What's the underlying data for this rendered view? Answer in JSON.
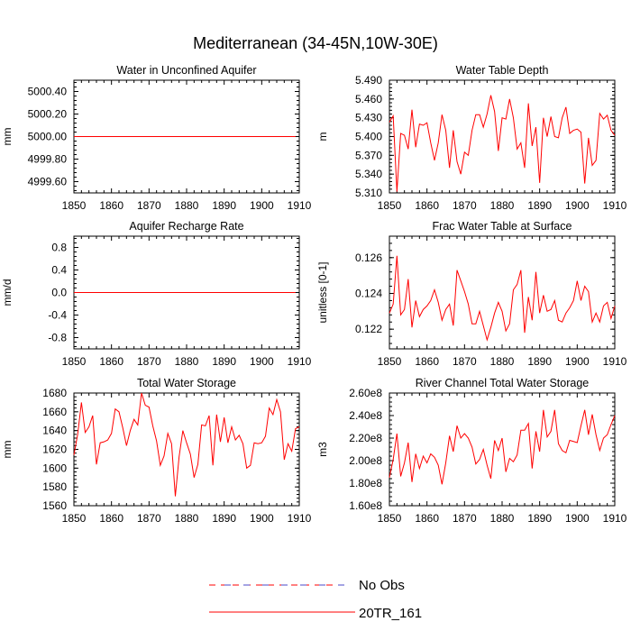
{
  "title": "Mediterranean (34-45N,10W-30E)",
  "colors": {
    "model": "#ff0000",
    "obs_dash_1": "#ff0000",
    "obs_dash_2": "#4a4ac8",
    "axis": "#000000"
  },
  "legend": {
    "entries": [
      {
        "label": "No Obs",
        "style": "dashed"
      },
      {
        "label": "20TR_161",
        "style": "solid"
      }
    ]
  },
  "chart_data": [
    {
      "type": "line",
      "title": "Water in Unconfined Aquifer",
      "ylabel": "mm",
      "xlim": [
        1850,
        1910
      ],
      "ylim": [
        4999.5,
        5000.5
      ],
      "xticks": [
        1850,
        1860,
        1870,
        1880,
        1890,
        1900,
        1910
      ],
      "yticks": [
        4999.6,
        4999.8,
        5000.0,
        5000.2,
        5000.4
      ],
      "ytick_labels": [
        "4999.60",
        "4999.80",
        "5000.00",
        "5000.20",
        "5000.40"
      ],
      "grid": false,
      "series": [
        {
          "name": "20TR_161",
          "x_start": 1850,
          "x_step": 1,
          "values": [
            5000,
            5000,
            5000,
            5000,
            5000,
            5000,
            5000,
            5000,
            5000,
            5000,
            5000,
            5000,
            5000,
            5000,
            5000,
            5000,
            5000,
            5000,
            5000,
            5000,
            5000,
            5000,
            5000,
            5000,
            5000,
            5000,
            5000,
            5000,
            5000,
            5000,
            5000,
            5000,
            5000,
            5000,
            5000,
            5000,
            5000,
            5000,
            5000,
            5000,
            5000,
            5000,
            5000,
            5000,
            5000,
            5000,
            5000,
            5000,
            5000,
            5000,
            5000,
            5000,
            5000,
            5000,
            5000,
            5000,
            5000,
            5000,
            5000,
            5000
          ]
        }
      ]
    },
    {
      "type": "line",
      "title": "Water Table Depth",
      "ylabel": "m",
      "xlim": [
        1850,
        1910
      ],
      "ylim": [
        5.31,
        5.49
      ],
      "xticks": [
        1850,
        1860,
        1870,
        1880,
        1890,
        1900,
        1910
      ],
      "yticks": [
        5.31,
        5.34,
        5.37,
        5.4,
        5.43,
        5.46,
        5.49
      ],
      "ytick_labels": [
        "5.310",
        "5.340",
        "5.370",
        "5.400",
        "5.430",
        "5.460",
        "5.490"
      ],
      "grid": false,
      "series": [
        {
          "name": "20TR_161",
          "x_start": 1850,
          "x_step": 1,
          "values": [
            5.423,
            5.433,
            5.312,
            5.405,
            5.402,
            5.38,
            5.443,
            5.383,
            5.42,
            5.418,
            5.422,
            5.39,
            5.362,
            5.39,
            5.435,
            5.41,
            5.35,
            5.41,
            5.36,
            5.34,
            5.375,
            5.37,
            5.41,
            5.435,
            5.435,
            5.415,
            5.436,
            5.466,
            5.44,
            5.377,
            5.43,
            5.428,
            5.46,
            5.43,
            5.38,
            5.39,
            5.35,
            5.453,
            5.385,
            5.415,
            5.326,
            5.43,
            5.4,
            5.432,
            5.4,
            5.398,
            5.43,
            5.447,
            5.405,
            5.41,
            5.412,
            5.407,
            5.325,
            5.398,
            5.354,
            5.362,
            5.437,
            5.428,
            5.434,
            5.41,
            5.402
          ]
        }
      ]
    },
    {
      "type": "line",
      "title": "Aquifer Recharge Rate",
      "ylabel": "mm/d",
      "xlim": [
        1850,
        1910
      ],
      "ylim": [
        -1.0,
        1.0
      ],
      "xticks": [
        1850,
        1860,
        1870,
        1880,
        1890,
        1900,
        1910
      ],
      "yticks": [
        -0.8,
        -0.4,
        0.0,
        0.4,
        0.8
      ],
      "ytick_labels": [
        "-0.8",
        "-0.4",
        "0.0",
        "0.4",
        "0.8"
      ],
      "grid": false,
      "series": [
        {
          "name": "20TR_161",
          "x_start": 1850,
          "x_step": 1,
          "values": [
            0,
            0,
            0,
            0,
            0,
            0,
            0,
            0,
            0,
            0,
            0,
            0,
            0,
            0,
            0,
            0,
            0,
            0,
            0,
            0,
            0,
            0,
            0,
            0,
            0,
            0,
            0,
            0,
            0,
            0,
            0,
            0,
            0,
            0,
            0,
            0,
            0,
            0,
            0,
            0,
            0,
            0,
            0,
            0,
            0,
            0,
            0,
            0,
            0,
            0,
            0,
            0,
            0,
            0,
            0,
            0,
            0,
            0,
            0,
            0
          ]
        }
      ]
    },
    {
      "type": "line",
      "title": "Frac Water Table at Surface",
      "ylabel": "unitless [0-1]",
      "xlim": [
        1850,
        1910
      ],
      "ylim": [
        0.1209,
        0.1272
      ],
      "xticks": [
        1850,
        1860,
        1870,
        1880,
        1890,
        1900,
        1910
      ],
      "yticks": [
        0.122,
        0.124,
        0.126
      ],
      "ytick_labels": [
        "0.122",
        "0.124",
        "0.126"
      ],
      "grid": false,
      "series": [
        {
          "name": "20TR_161",
          "x_start": 1850,
          "x_step": 1,
          "values": [
            0.1229,
            0.1234,
            0.1261,
            0.1228,
            0.1231,
            0.1248,
            0.1221,
            0.1236,
            0.1227,
            0.1231,
            0.1233,
            0.1236,
            0.1242,
            0.1235,
            0.1225,
            0.1231,
            0.1234,
            0.1222,
            0.1253,
            0.1247,
            0.1241,
            0.1234,
            0.1223,
            0.1223,
            0.123,
            0.1222,
            0.1214,
            0.1221,
            0.1229,
            0.1235,
            0.123,
            0.1219,
            0.1223,
            0.1242,
            0.1245,
            0.1253,
            0.1218,
            0.1238,
            0.1225,
            0.1252,
            0.1229,
            0.1239,
            0.123,
            0.1231,
            0.1236,
            0.1225,
            0.1224,
            0.1229,
            0.1232,
            0.1236,
            0.1247,
            0.1236,
            0.1244,
            0.1241,
            0.1224,
            0.1229,
            0.1224,
            0.1233,
            0.1235,
            0.1226,
            0.1233
          ]
        }
      ]
    },
    {
      "type": "line",
      "title": "Total Water Storage",
      "ylabel": "mm",
      "xlim": [
        1850,
        1910
      ],
      "ylim": [
        1560,
        1680
      ],
      "xticks": [
        1850,
        1860,
        1870,
        1880,
        1890,
        1900,
        1910
      ],
      "yticks": [
        1560,
        1580,
        1600,
        1620,
        1640,
        1660,
        1680
      ],
      "ytick_labels": [
        "1560",
        "1580",
        "1600",
        "1620",
        "1640",
        "1660",
        "1680"
      ],
      "grid": false,
      "series": [
        {
          "name": "20TR_161",
          "x_start": 1850,
          "x_step": 1,
          "values": [
            1614,
            1636,
            1670,
            1638,
            1644,
            1656,
            1604,
            1627,
            1628,
            1630,
            1637,
            1663,
            1660,
            1643,
            1624,
            1640,
            1652,
            1646,
            1680,
            1667,
            1665,
            1645,
            1629,
            1603,
            1613,
            1637,
            1626,
            1570,
            1612,
            1640,
            1627,
            1615,
            1590,
            1604,
            1646,
            1645,
            1656,
            1603,
            1657,
            1628,
            1654,
            1627,
            1644,
            1630,
            1635,
            1626,
            1600,
            1603,
            1627,
            1626,
            1627,
            1634,
            1664,
            1657,
            1673,
            1660,
            1609,
            1626,
            1618,
            1642,
            1644
          ]
        }
      ]
    },
    {
      "type": "line",
      "title": "River Channel Total Water Storage",
      "ylabel": "m3",
      "xlim": [
        1850,
        1910
      ],
      "ylim": [
        160000000,
        260000000
      ],
      "xticks": [
        1850,
        1860,
        1870,
        1880,
        1890,
        1900,
        1910
      ],
      "yticks": [
        160000000,
        180000000,
        200000000,
        220000000,
        240000000,
        260000000
      ],
      "ytick_labels": [
        "1.60e8",
        "1.80e8",
        "2.00e8",
        "2.20e8",
        "2.40e8",
        "2.60e8"
      ],
      "grid": false,
      "series": [
        {
          "name": "20TR_161",
          "x_start": 1850,
          "x_step": 1,
          "values": [
            185000000,
            201000000,
            224000000,
            186000000,
            198000000,
            216000000,
            181000000,
            206000000,
            193000000,
            204000000,
            198000000,
            206000000,
            203000000,
            196000000,
            179000000,
            198000000,
            222000000,
            208000000,
            231000000,
            220000000,
            224000000,
            220000000,
            212000000,
            197000000,
            201000000,
            210000000,
            196000000,
            184000000,
            218000000,
            209000000,
            220000000,
            190000000,
            202000000,
            199000000,
            205000000,
            227000000,
            227000000,
            233000000,
            193000000,
            226000000,
            208000000,
            245000000,
            221000000,
            226000000,
            245000000,
            215000000,
            209000000,
            207000000,
            218000000,
            217000000,
            216000000,
            231000000,
            245000000,
            223000000,
            241000000,
            223000000,
            209000000,
            220000000,
            223000000,
            232000000,
            240000000
          ]
        }
      ]
    }
  ]
}
